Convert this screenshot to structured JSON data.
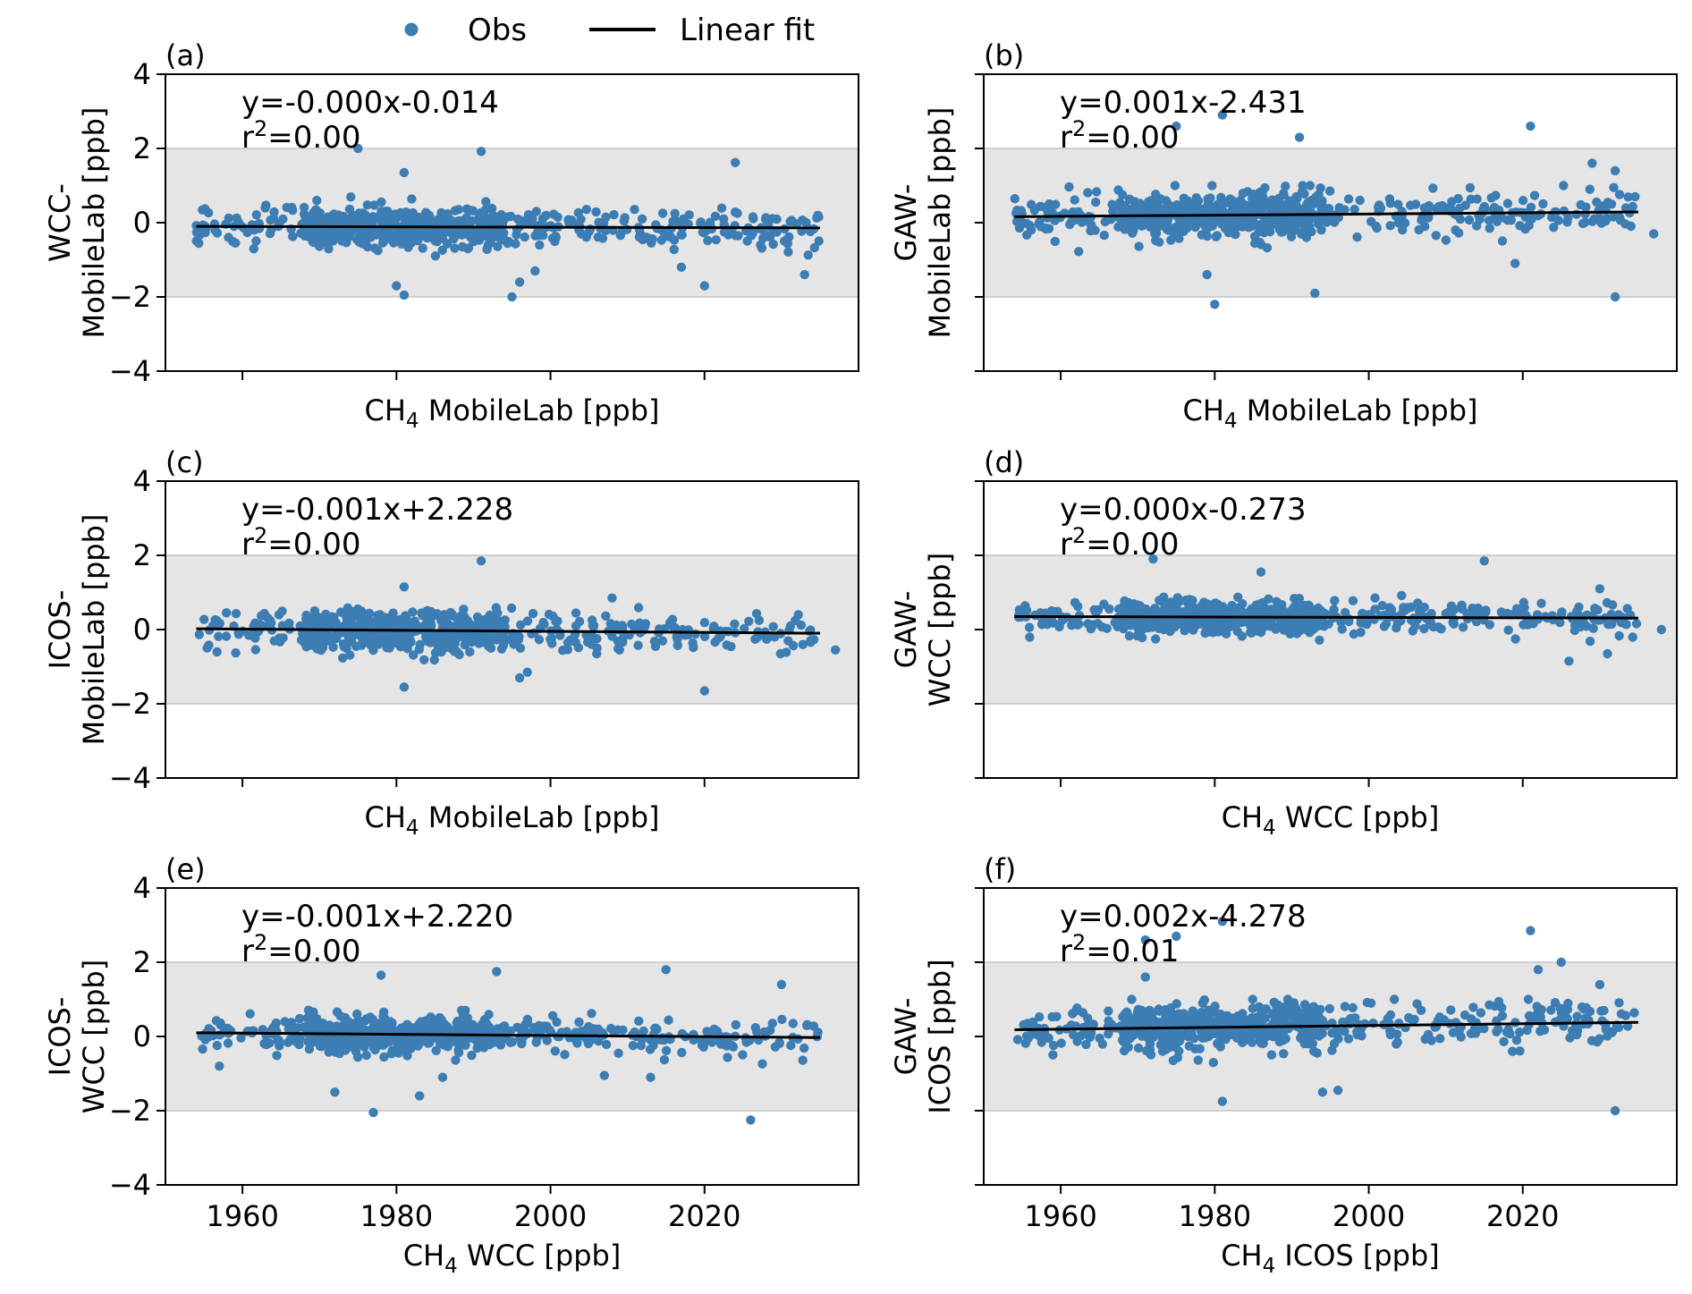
{
  "legend": {
    "obs_label": "Obs",
    "fit_label": "Linear fit",
    "obs_color": "#3c7db3",
    "fit_color": "#000000",
    "band_color": "#e5e5e5",
    "band_edge_color": "#cfcfcf"
  },
  "chart_data": [
    {
      "panel": "(a)",
      "type": "scatter",
      "ylabel_lines": [
        "WCC-",
        "MobileLab [ppb]"
      ],
      "xlabel": "CH4 MobileLab [ppb]",
      "xlabel_species": "CH",
      "xlabel_sub": "4",
      "xlabel_rest": " MobileLab [ppb]",
      "xlim": [
        1950,
        2040
      ],
      "ylim": [
        -4,
        4
      ],
      "yticks": [
        -4,
        -2,
        0,
        2,
        4
      ],
      "ytick_labels": [
        "−4",
        "−2",
        "0",
        "2",
        "4"
      ],
      "xticks": [
        1960,
        1980,
        2000,
        2020
      ],
      "xtick_labels": [],
      "band": [
        -2,
        2
      ],
      "fit": {
        "slope": -0.0,
        "intercept": -0.014,
        "line": [
          [
            1954,
            -0.1
          ],
          [
            2035,
            -0.14
          ]
        ],
        "equation": "y=-0.000x-0.014",
        "r2_prefix": "r",
        "r2_sup": "2",
        "r2_value": "=0.00"
      },
      "scatter": {
        "seed": 11,
        "center": -0.1,
        "spread": 0.26,
        "x_range": [
          1954,
          2035
        ],
        "outliers": [
          [
            1975,
            2.0
          ],
          [
            1991,
            1.92
          ],
          [
            2024,
            1.62
          ],
          [
            1981,
            1.35
          ],
          [
            1980,
            -1.7
          ],
          [
            1981,
            -1.95
          ],
          [
            1995,
            -2.0
          ],
          [
            1996,
            -1.6
          ],
          [
            2020,
            -1.7
          ],
          [
            2033,
            -1.4
          ],
          [
            2017,
            -1.2
          ],
          [
            1998,
            -1.3
          ]
        ]
      }
    },
    {
      "panel": "(b)",
      "type": "scatter",
      "ylabel_lines": [
        "GAW-",
        "MobileLab [ppb]"
      ],
      "xlabel": "CH4 MobileLab [ppb]",
      "xlabel_species": "CH",
      "xlabel_sub": "4",
      "xlabel_rest": " MobileLab [ppb]",
      "xlim": [
        1950,
        2040
      ],
      "ylim": [
        -4,
        4
      ],
      "yticks": [
        -4,
        -2,
        0,
        2,
        4
      ],
      "ytick_labels": [],
      "xticks": [
        1960,
        1980,
        2000,
        2020
      ],
      "xtick_labels": [],
      "band": [
        -2,
        2
      ],
      "fit": {
        "slope": 0.001,
        "intercept": -2.431,
        "line": [
          [
            1954,
            0.16
          ],
          [
            2035,
            0.29
          ]
        ],
        "equation": "y=0.001x-2.431",
        "r2_prefix": "r",
        "r2_sup": "2",
        "r2_value": "=0.00"
      },
      "scatter": {
        "seed": 23,
        "center": 0.22,
        "spread": 0.3,
        "x_range": [
          1954,
          2035
        ],
        "outliers": [
          [
            1975,
            2.6
          ],
          [
            1981,
            2.9
          ],
          [
            1991,
            2.3
          ],
          [
            2021,
            2.6
          ],
          [
            2029,
            1.6
          ],
          [
            2032,
            1.4
          ],
          [
            1980,
            -2.2
          ],
          [
            1993,
            -1.9
          ],
          [
            2032,
            -2.0
          ],
          [
            1979,
            -1.4
          ],
          [
            2019,
            -1.1
          ],
          [
            2037,
            -0.3
          ]
        ]
      }
    },
    {
      "panel": "(c)",
      "type": "scatter",
      "ylabel_lines": [
        "ICOS-",
        "MobileLab [ppb]"
      ],
      "xlabel": "CH4 MobileLab [ppb]",
      "xlabel_species": "CH",
      "xlabel_sub": "4",
      "xlabel_rest": " MobileLab [ppb]",
      "xlim": [
        1950,
        2040
      ],
      "ylim": [
        -4,
        4
      ],
      "yticks": [
        -4,
        -2,
        0,
        2,
        4
      ],
      "ytick_labels": [
        "−4",
        "−2",
        "0",
        "2",
        "4"
      ],
      "xticks": [
        1960,
        1980,
        2000,
        2020
      ],
      "xtick_labels": [],
      "band": [
        -2,
        2
      ],
      "fit": {
        "slope": -0.001,
        "intercept": 2.228,
        "line": [
          [
            1954,
            0.02
          ],
          [
            2035,
            -0.1
          ]
        ],
        "equation": "y=-0.001x+2.228",
        "r2_prefix": "r",
        "r2_sup": "2",
        "r2_value": "=0.00"
      },
      "scatter": {
        "seed": 37,
        "center": -0.05,
        "spread": 0.27,
        "x_range": [
          1954,
          2035
        ],
        "outliers": [
          [
            1991,
            1.85
          ],
          [
            1981,
            1.15
          ],
          [
            1981,
            -1.55
          ],
          [
            2020,
            -1.65
          ],
          [
            1996,
            -1.3
          ],
          [
            1997,
            -1.15
          ],
          [
            2008,
            0.85
          ],
          [
            2037,
            -0.55
          ]
        ]
      }
    },
    {
      "panel": "(d)",
      "type": "scatter",
      "ylabel_lines": [
        "GAW-",
        "WCC [ppb]"
      ],
      "xlabel": "CH4 WCC [ppb]",
      "xlabel_species": "CH",
      "xlabel_sub": "4",
      "xlabel_rest": " WCC [ppb]",
      "xlim": [
        1950,
        2040
      ],
      "ylim": [
        -4,
        4
      ],
      "yticks": [
        -4,
        -2,
        0,
        2,
        4
      ],
      "ytick_labels": [],
      "xticks": [
        1960,
        1980,
        2000,
        2020
      ],
      "xtick_labels": [],
      "band": [
        -2,
        2
      ],
      "fit": {
        "slope": 0.0,
        "intercept": -0.273,
        "line": [
          [
            1954,
            0.35
          ],
          [
            2035,
            0.31
          ]
        ],
        "equation": "y=0.000x-0.273",
        "r2_prefix": "r",
        "r2_sup": "2",
        "r2_value": "=0.00"
      },
      "scatter": {
        "seed": 41,
        "center": 0.3,
        "spread": 0.22,
        "x_range": [
          1954,
          2035
        ],
        "outliers": [
          [
            1972,
            1.9
          ],
          [
            1986,
            1.55
          ],
          [
            2015,
            1.85
          ],
          [
            2030,
            1.1
          ],
          [
            2026,
            -0.85
          ],
          [
            2031,
            -0.65
          ],
          [
            2038,
            0.0
          ]
        ]
      }
    },
    {
      "panel": "(e)",
      "type": "scatter",
      "ylabel_lines": [
        "ICOS-",
        "WCC [ppb]"
      ],
      "xlabel": "CH4 WCC [ppb]",
      "xlabel_species": "CH",
      "xlabel_sub": "4",
      "xlabel_rest": " WCC [ppb]",
      "xlim": [
        1950,
        2040
      ],
      "ylim": [
        -4,
        4
      ],
      "yticks": [
        -4,
        -2,
        0,
        2,
        4
      ],
      "ytick_labels": [
        "−4",
        "−2",
        "0",
        "2",
        "4"
      ],
      "xticks": [
        1960,
        1980,
        2000,
        2020
      ],
      "xtick_labels": [
        "1960",
        "1980",
        "2000",
        "2020"
      ],
      "band": [
        -2,
        2
      ],
      "fit": {
        "slope": -0.001,
        "intercept": 2.22,
        "line": [
          [
            1954,
            0.1
          ],
          [
            2035,
            -0.03
          ]
        ],
        "equation": "y=-0.001x+2.220",
        "r2_prefix": "r",
        "r2_sup": "2",
        "r2_value": "=0.00"
      },
      "scatter": {
        "seed": 53,
        "center": 0.03,
        "spread": 0.24,
        "x_range": [
          1954,
          2035
        ],
        "outliers": [
          [
            1978,
            1.65
          ],
          [
            1993,
            1.75
          ],
          [
            2015,
            1.8
          ],
          [
            2030,
            1.4
          ],
          [
            1977,
            -2.05
          ],
          [
            1983,
            -1.6
          ],
          [
            2026,
            -2.25
          ],
          [
            1972,
            -1.5
          ],
          [
            2013,
            -1.1
          ],
          [
            2007,
            -1.05
          ],
          [
            1957,
            -0.8
          ],
          [
            1986,
            -1.1
          ]
        ]
      }
    },
    {
      "panel": "(f)",
      "type": "scatter",
      "ylabel_lines": [
        "GAW-",
        "ICOS [ppb]"
      ],
      "xlabel": "CH4 ICOS [ppb]",
      "xlabel_species": "CH",
      "xlabel_sub": "4",
      "xlabel_rest": " ICOS [ppb]",
      "xlim": [
        1950,
        2040
      ],
      "ylim": [
        -4,
        4
      ],
      "yticks": [
        -4,
        -2,
        0,
        2,
        4
      ],
      "ytick_labels": [],
      "xticks": [
        1960,
        1980,
        2000,
        2020
      ],
      "xtick_labels": [
        "1960",
        "1980",
        "2000",
        "2020"
      ],
      "band": [
        -2,
        2
      ],
      "fit": {
        "slope": 0.002,
        "intercept": -4.278,
        "line": [
          [
            1954,
            0.18
          ],
          [
            2035,
            0.38
          ]
        ],
        "equation": "y=0.002x-4.278",
        "r2_prefix": "r",
        "r2_sup": "2",
        "r2_value": "=0.01"
      },
      "scatter": {
        "seed": 67,
        "center": 0.25,
        "spread": 0.28,
        "x_range": [
          1954,
          2035
        ],
        "outliers": [
          [
            1971,
            2.6
          ],
          [
            1975,
            2.7
          ],
          [
            1981,
            3.1
          ],
          [
            2021,
            2.85
          ],
          [
            2025,
            2.0
          ],
          [
            2022,
            1.8
          ],
          [
            1981,
            -1.75
          ],
          [
            1994,
            -1.5
          ],
          [
            1996,
            -1.45
          ],
          [
            2032,
            -2.0
          ],
          [
            1971,
            1.6
          ],
          [
            2030,
            1.4
          ]
        ]
      }
    }
  ]
}
